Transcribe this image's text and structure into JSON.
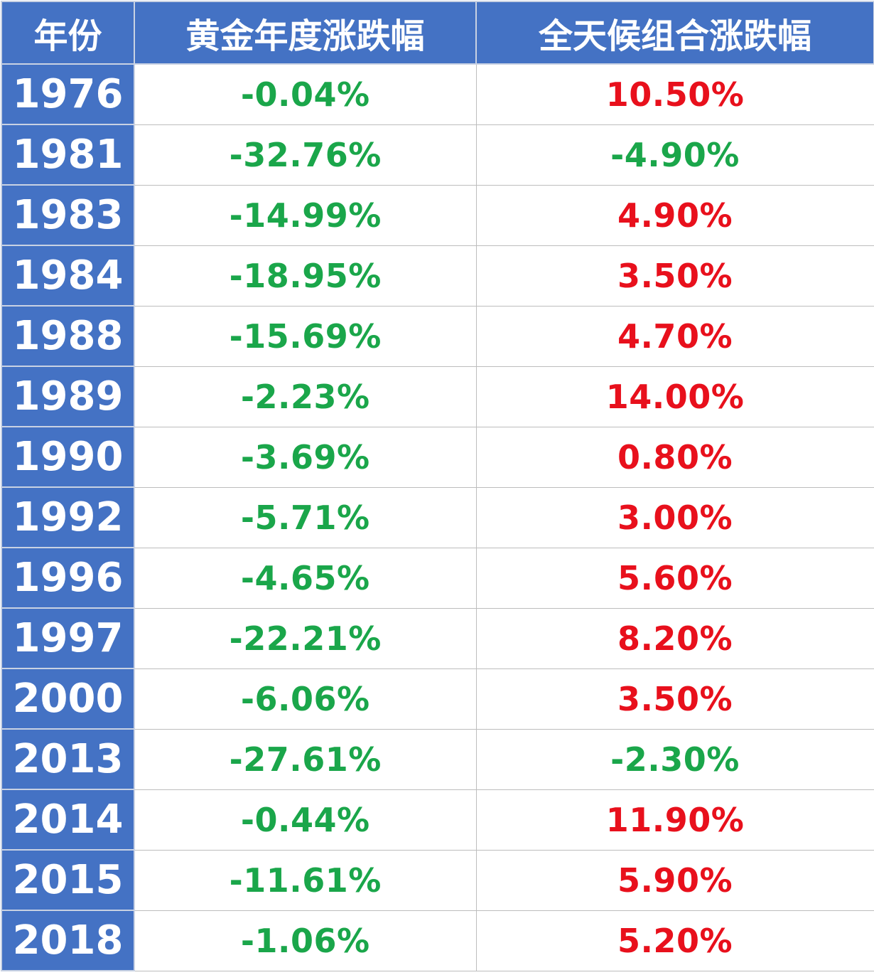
{
  "table": {
    "headers": [
      "年份",
      "黄金年度涨跌幅",
      "全天候组合涨跌幅"
    ],
    "rows": [
      {
        "year": "1976",
        "gold": "-0.04%",
        "allweather": "10.50%"
      },
      {
        "year": "1981",
        "gold": "-32.76%",
        "allweather": "-4.90%"
      },
      {
        "year": "1983",
        "gold": "-14.99%",
        "allweather": "4.90%"
      },
      {
        "year": "1984",
        "gold": "-18.95%",
        "allweather": "3.50%"
      },
      {
        "year": "1988",
        "gold": "-15.69%",
        "allweather": "4.70%"
      },
      {
        "year": "1989",
        "gold": "-2.23%",
        "allweather": "14.00%"
      },
      {
        "year": "1990",
        "gold": "-3.69%",
        "allweather": "0.80%"
      },
      {
        "year": "1992",
        "gold": "-5.71%",
        "allweather": "3.00%"
      },
      {
        "year": "1996",
        "gold": "-4.65%",
        "allweather": "5.60%"
      },
      {
        "year": "1997",
        "gold": "-22.21%",
        "allweather": "8.20%"
      },
      {
        "year": "2000",
        "gold": "-6.06%",
        "allweather": "3.50%"
      },
      {
        "year": "2013",
        "gold": "-27.61%",
        "allweather": "-2.30%"
      },
      {
        "year": "2014",
        "gold": "-0.44%",
        "allweather": "11.90%"
      },
      {
        "year": "2015",
        "gold": "-11.61%",
        "allweather": "5.90%"
      },
      {
        "year": "2018",
        "gold": "-1.06%",
        "allweather": "5.20%"
      }
    ]
  },
  "colors": {
    "header_bg": "#4472c4",
    "header_text": "#ffffff",
    "negative": "#1aa64a",
    "positive": "#e8101c",
    "grid": "#bdbdbd"
  }
}
